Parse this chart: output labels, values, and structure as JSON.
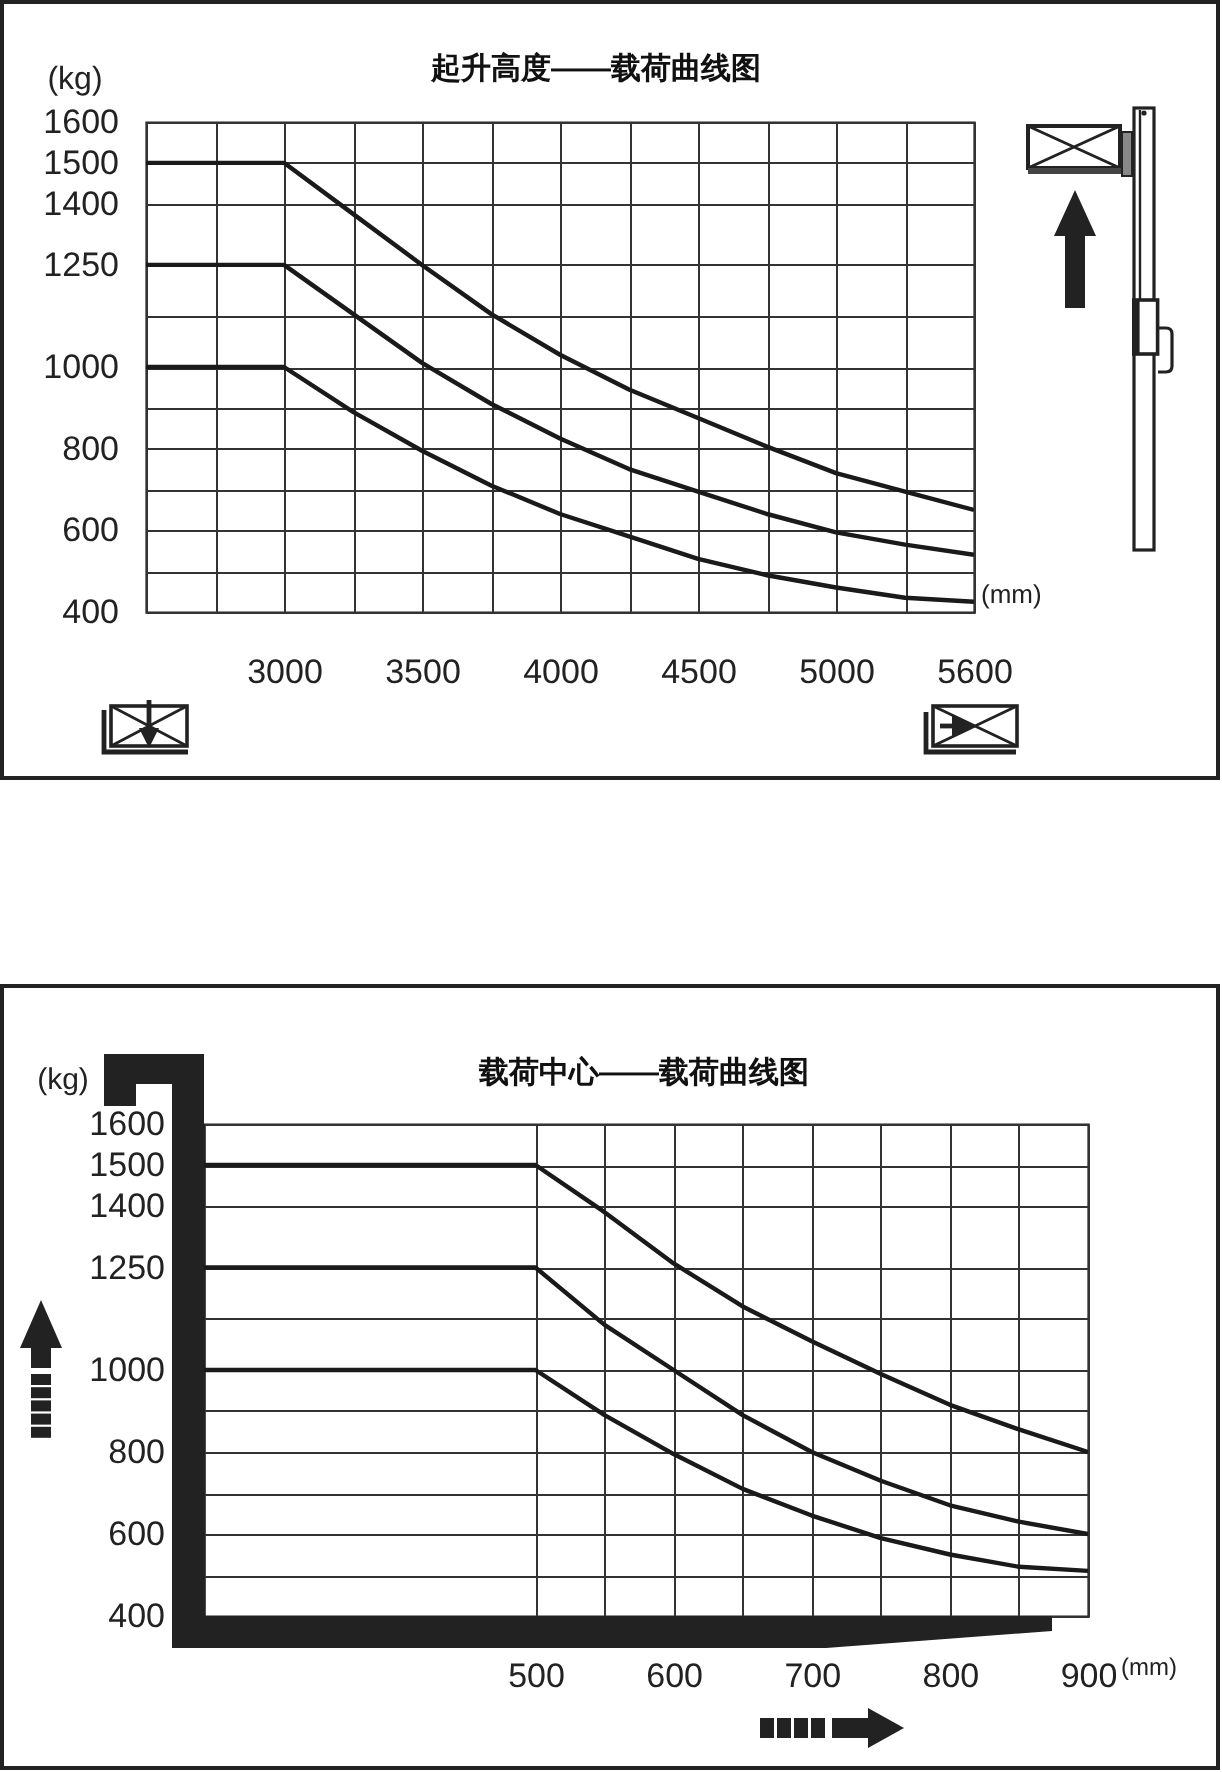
{
  "chart_data": [
    {
      "type": "line",
      "title": "起升高度——载荷曲线图",
      "xlabel": "(mm)",
      "ylabel": "(kg)",
      "categories": [
        null,
        null,
        "3000",
        null,
        "3500",
        null,
        "4000",
        null,
        "4500",
        null,
        "5000",
        null,
        "5600"
      ],
      "series": [
        {
          "color": "#1a1a1a",
          "values": [
            1500,
            1500,
            1500,
            1375,
            1250,
            1130,
            1030,
            945,
            875,
            805,
            740,
            695,
            650
          ]
        },
        {
          "color": "#1a1a1a",
          "values": [
            1250,
            1250,
            1250,
            1130,
            1010,
            910,
            825,
            750,
            695,
            640,
            595,
            565,
            540
          ]
        },
        {
          "color": "#1a1a1a",
          "values": [
            1000,
            1000,
            1000,
            890,
            795,
            710,
            640,
            585,
            530,
            490,
            460,
            435,
            425
          ]
        }
      ],
      "ylim": [
        400,
        1600
      ],
      "yticks": [
        400,
        {
          "value": 500,
          "label": null
        },
        600,
        {
          "value": 700,
          "label": null
        },
        800,
        {
          "value": 900,
          "label": null
        },
        1000,
        {
          "value": 1125,
          "label": null
        },
        1250,
        1400,
        1500,
        1600
      ],
      "grid": true,
      "line_style": "solid"
    },
    {
      "type": "line",
      "title": "载荷中心——载荷曲线图",
      "xlabel": "(mm)",
      "ylabel": "(kg)",
      "x": [
        260,
        500,
        550,
        600,
        650,
        700,
        750,
        800,
        850,
        900
      ],
      "series": [
        {
          "color": "#1a1a1a",
          "values": [
            1500,
            1500,
            1385,
            1260,
            1155,
            1070,
            990,
            915,
            855,
            800
          ]
        },
        {
          "color": "#1a1a1a",
          "values": [
            1250,
            1250,
            1110,
            1000,
            890,
            800,
            730,
            670,
            630,
            600
          ]
        },
        {
          "color": "#1a1a1a",
          "values": [
            1000,
            1000,
            890,
            795,
            710,
            645,
            590,
            550,
            520,
            510
          ]
        }
      ],
      "xlim": [
        260,
        900
      ],
      "xticks": [
        500,
        {
          "value": 550,
          "label": null
        },
        600,
        {
          "value": 650,
          "label": null
        },
        700,
        {
          "value": 750,
          "label": null
        },
        800,
        {
          "value": 850,
          "label": null
        },
        900
      ],
      "ylim": [
        400,
        1600
      ],
      "yticks": [
        400,
        {
          "value": 500,
          "label": null
        },
        600,
        {
          "value": 700,
          "label": null
        },
        800,
        {
          "value": 900,
          "label": null
        },
        1000,
        {
          "value": 1125,
          "label": null
        },
        1250,
        1400,
        1500,
        1600
      ],
      "grid": true,
      "line_style": "solid"
    }
  ]
}
